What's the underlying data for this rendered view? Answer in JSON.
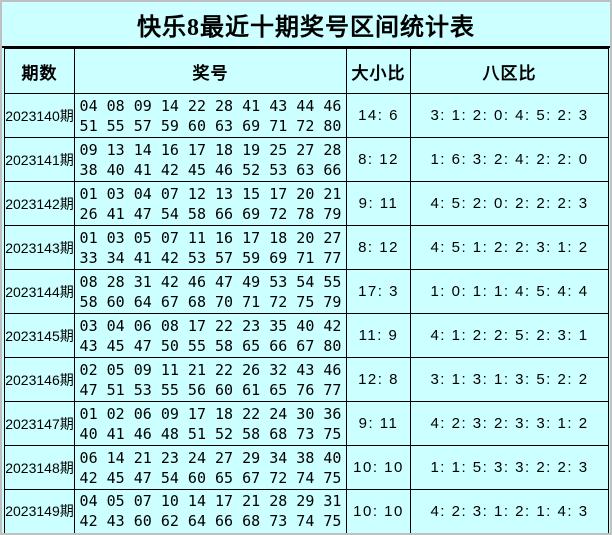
{
  "title": "快乐8最近十期奖号区间统计表",
  "colors": {
    "background": "#ccffff",
    "table_border": "#000000",
    "frame_border": "#c0c0c0",
    "text": "#000000"
  },
  "chart_data": {
    "type": "table",
    "title": "快乐8最近十期奖号区间统计表",
    "columns": [
      "期数",
      "奖号",
      "大小比",
      "八区比"
    ],
    "rows": [
      {
        "period": "2023140期",
        "numbers_line1": "04 08 09 14 22 28 41 43 44 46",
        "numbers_line2": "51 55 57 59 60 63 69 71 72 80",
        "big_small": "14: 6",
        "zones": "3: 1: 2: 0: 4: 5: 2: 3"
      },
      {
        "period": "2023141期",
        "numbers_line1": "09 13 14 16 17 18 19 25 27 28",
        "numbers_line2": "38 40 41 42 45 46 52 53 63 66",
        "big_small": "8: 12",
        "zones": "1: 6: 3: 2: 4: 2: 2: 0"
      },
      {
        "period": "2023142期",
        "numbers_line1": "01 03 04 07 12 13 15 17 20 21",
        "numbers_line2": "26 41 47 54 58 66 69 72 78 79",
        "big_small": "9: 11",
        "zones": "4: 5: 2: 0: 2: 2: 2: 3"
      },
      {
        "period": "2023143期",
        "numbers_line1": "01 03 05 07 11 16 17 18 20 27",
        "numbers_line2": "33 34 41 42 53 57 59 69 71 77",
        "big_small": "8: 12",
        "zones": "4: 5: 1: 2: 2: 3: 1: 2"
      },
      {
        "period": "2023144期",
        "numbers_line1": "08 28 31 42 46 47 49 53 54 55",
        "numbers_line2": "58 60 64 67 68 70 71 72 75 79",
        "big_small": "17: 3",
        "zones": "1: 0: 1: 1: 4: 5: 4: 4"
      },
      {
        "period": "2023145期",
        "numbers_line1": "03 04 06 08 17 22 23 35 40 42",
        "numbers_line2": "43 45 47 50 55 58 65 66 67 80",
        "big_small": "11: 9",
        "zones": "4: 1: 2: 2: 5: 2: 3: 1"
      },
      {
        "period": "2023146期",
        "numbers_line1": "02 05 09 11 21 22 26 32 43 46",
        "numbers_line2": "47 51 53 55 56 60 61 65 76 77",
        "big_small": "12: 8",
        "zones": "3: 1: 3: 1: 3: 5: 2: 2"
      },
      {
        "period": "2023147期",
        "numbers_line1": "01 02 06 09 17 18 22 24 30 36",
        "numbers_line2": "40 41 46 48 51 52 58 68 73 75",
        "big_small": "9: 11",
        "zones": "4: 2: 3: 2: 3: 3: 1: 2"
      },
      {
        "period": "2023148期",
        "numbers_line1": "06 14 21 23 24 27 29 34 38 40",
        "numbers_line2": "42 45 47 54 60 65 67 72 74 75",
        "big_small": "10: 10",
        "zones": "1: 1: 5: 3: 3: 2: 2: 3"
      },
      {
        "period": "2023149期",
        "numbers_line1": "04 05 07 10 14 17 21 28 29 31",
        "numbers_line2": "42 43 60 62 64 66 68 73 74 75",
        "big_small": "10: 10",
        "zones": "4: 2: 3: 1: 2: 1: 4: 3"
      }
    ]
  }
}
